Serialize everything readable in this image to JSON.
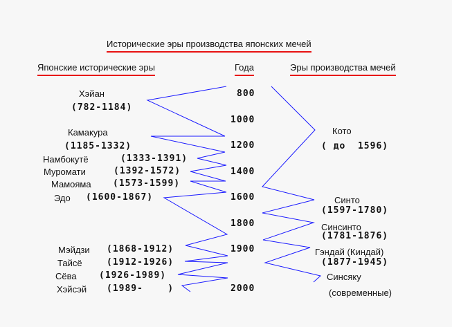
{
  "title": "Исторические эры производства японских мечей",
  "headers": {
    "eras": "Японские исторические эры",
    "years": "Года",
    "sword_eras": "Эры производства мечей"
  },
  "historical_eras": [
    {
      "name": "Хэйан",
      "years": "(782-1184)"
    },
    {
      "name": "Камакура",
      "years": "(1185-1332)"
    },
    {
      "name": "Намбокутё",
      "years": "(1333-1391)"
    },
    {
      "name": "Муромати",
      "years": "(1392-1572)"
    },
    {
      "name": "Мамояма",
      "years": "(1573-1599)"
    },
    {
      "name": "Эдо",
      "years": "(1600-1867)"
    },
    {
      "name": "Мэйдзи",
      "years": "(1868-1912)"
    },
    {
      "name": "Тайсё",
      "years": "(1912-1926)"
    },
    {
      "name": "Сёва",
      "years": "(1926-1989)"
    },
    {
      "name": "Хэйсэй",
      "years": "(1989-    )"
    }
  ],
  "year_scale": [
    "800",
    "1000",
    "1200",
    "1400",
    "1600",
    "1800",
    "1900",
    "2000"
  ],
  "sword_eras": [
    {
      "name": "Кото",
      "years": "( до  1596)"
    },
    {
      "name": "Синто",
      "years": "(1597-1780)"
    },
    {
      "name": "Синсинто",
      "years": "(1781-1876)"
    },
    {
      "name": "Гэндай (Киндай)",
      "years": "(1877-1945)"
    },
    {
      "name": "Синсяку",
      "years": "(современные)"
    }
  ],
  "colors": {
    "connector_lines": "#1a1aff",
    "underline": "#e81010"
  }
}
